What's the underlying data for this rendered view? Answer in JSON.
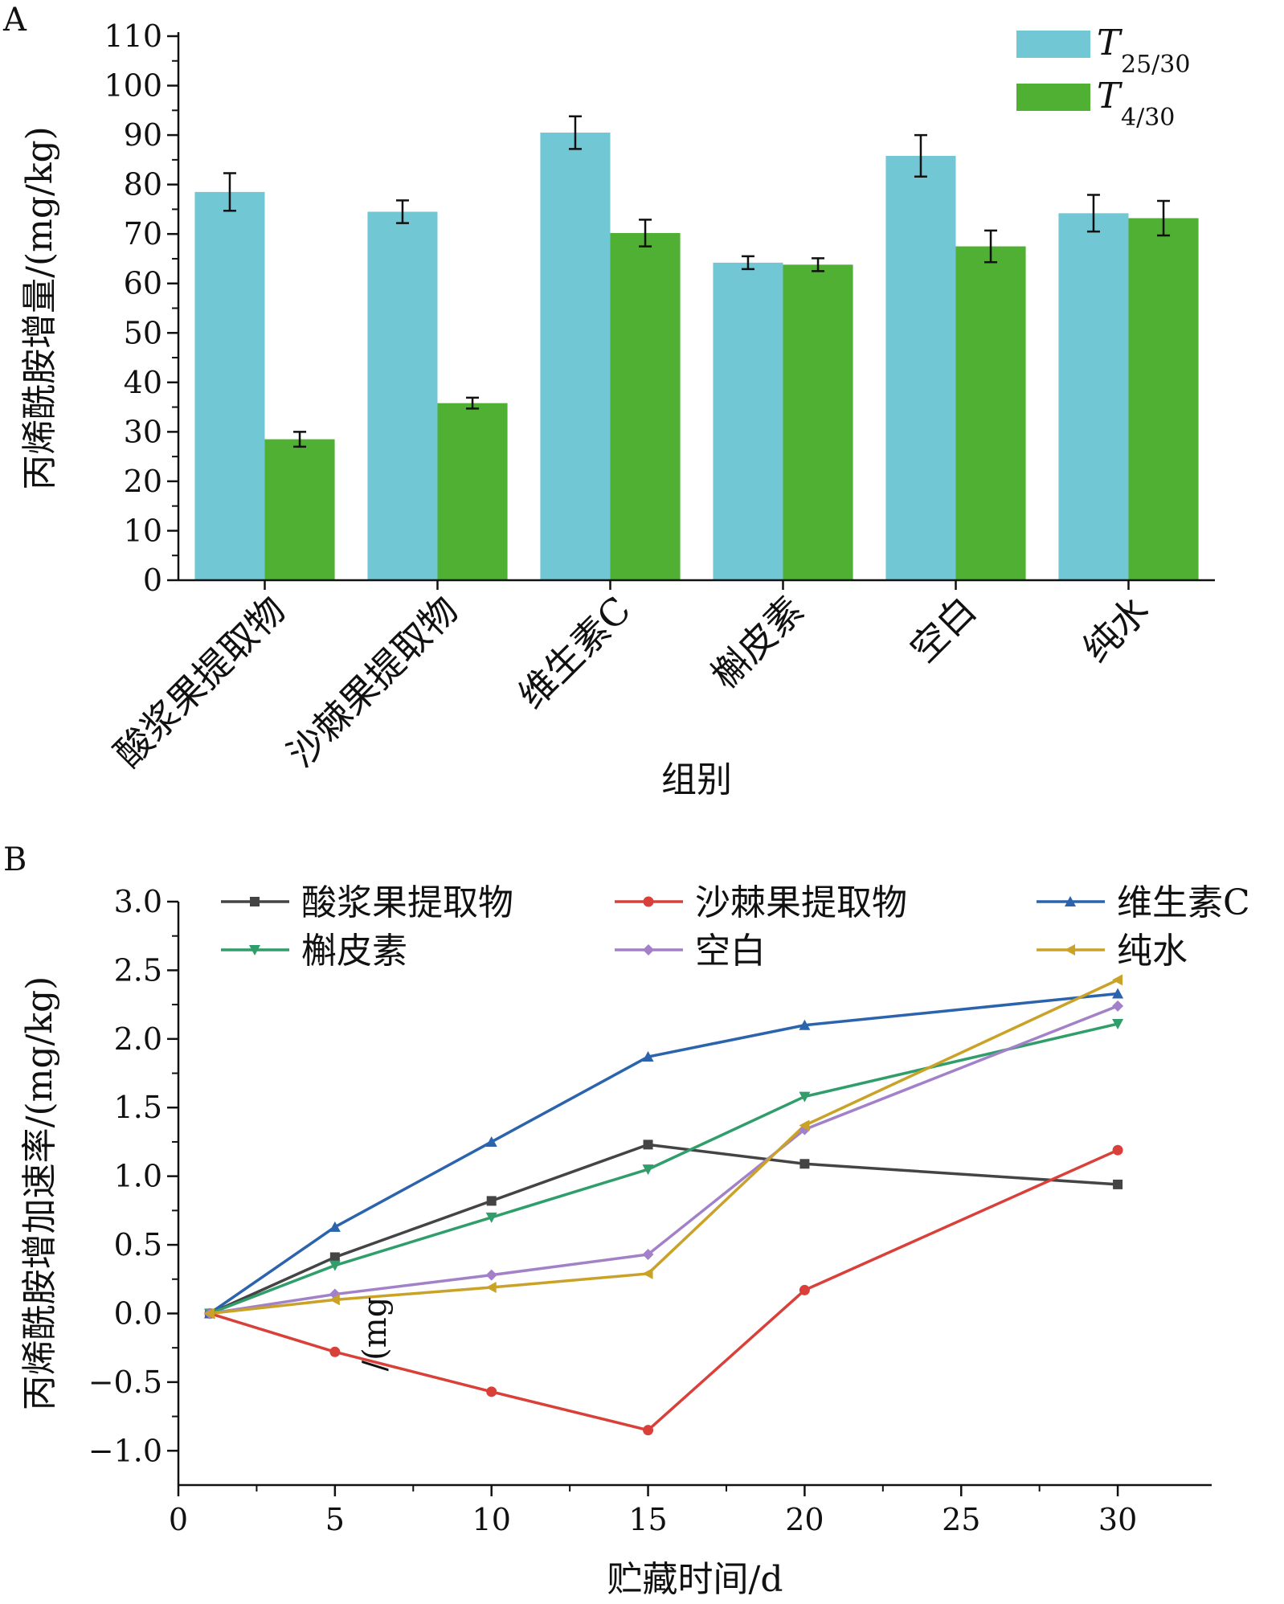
{
  "chart_data": [
    {
      "panel": "A",
      "type": "bar",
      "title": "",
      "xlabel": "组别",
      "ylabel": "丙烯酰胺增量/(mg/kg)",
      "ylim": [
        0,
        110
      ],
      "yticks": [
        0,
        10,
        20,
        30,
        40,
        50,
        60,
        70,
        80,
        90,
        100,
        110
      ],
      "categories": [
        "酸浆果提取物",
        "沙棘果提取物",
        "维生素C",
        "槲皮素",
        "空白",
        "纯水"
      ],
      "series": [
        {
          "name": "T25/30",
          "legend_symbol": "T",
          "legend_subscript": "25/30",
          "color": "#72c7d4",
          "values": [
            78.5,
            74.5,
            90.5,
            64.2,
            85.8,
            74.2
          ],
          "errors": [
            3.8,
            2.3,
            3.3,
            1.3,
            4.2,
            3.7
          ]
        },
        {
          "name": "T4/30",
          "legend_symbol": "T",
          "legend_subscript": "4/30",
          "color": "#4fb033",
          "values": [
            28.5,
            35.8,
            70.2,
            63.8,
            67.5,
            73.2
          ],
          "errors": [
            1.5,
            1.1,
            2.7,
            1.3,
            3.2,
            3.5
          ]
        }
      ],
      "grid": false,
      "legend_position": "top-right"
    },
    {
      "panel": "B",
      "type": "line",
      "title": "",
      "xlabel": "贮藏时间/d",
      "ylabel": "丙烯酰胺增加速率/(mg/kg)",
      "xlim": [
        0,
        33
      ],
      "ylim": [
        -1.25,
        3.0
      ],
      "xticks": [
        0,
        5,
        10,
        15,
        20,
        25,
        30
      ],
      "yticks": [
        -1.0,
        -0.5,
        0.0,
        0.5,
        1.0,
        1.5,
        2.0,
        2.5,
        3.0
      ],
      "ytick_labels": [
        "−1.0",
        "−0.5",
        "0.0",
        "0.5",
        "1.0",
        "1.5",
        "2.0",
        "2.5",
        "3.0"
      ],
      "x": [
        1,
        5,
        10,
        15,
        20,
        30
      ],
      "series": [
        {
          "name": "酸浆果提取物",
          "color": "#444444",
          "marker": "square",
          "values": [
            0.0,
            0.41,
            0.82,
            1.23,
            1.09,
            0.94
          ]
        },
        {
          "name": "沙棘果提取物",
          "color": "#d9403a",
          "marker": "circle",
          "values": [
            0.0,
            -0.28,
            -0.57,
            -0.85,
            0.17,
            1.19
          ]
        },
        {
          "name": "维生素C",
          "color": "#2b63ad",
          "marker": "triangle-up",
          "values": [
            0.0,
            0.63,
            1.25,
            1.87,
            2.1,
            2.33
          ]
        },
        {
          "name": "槲皮素",
          "color": "#2f9e6a",
          "marker": "triangle-down",
          "values": [
            0.0,
            0.35,
            0.7,
            1.05,
            1.58,
            2.11
          ]
        },
        {
          "name": "空白",
          "color": "#a381c9",
          "marker": "diamond",
          "values": [
            0.0,
            0.14,
            0.28,
            0.43,
            1.34,
            2.24
          ]
        },
        {
          "name": "纯水",
          "color": "#c9a227",
          "marker": "triangle-left",
          "values": [
            0.0,
            0.1,
            0.19,
            0.29,
            1.37,
            2.43
          ]
        }
      ],
      "stray_text": "/(mg",
      "grid": false,
      "legend_position": "top"
    }
  ]
}
